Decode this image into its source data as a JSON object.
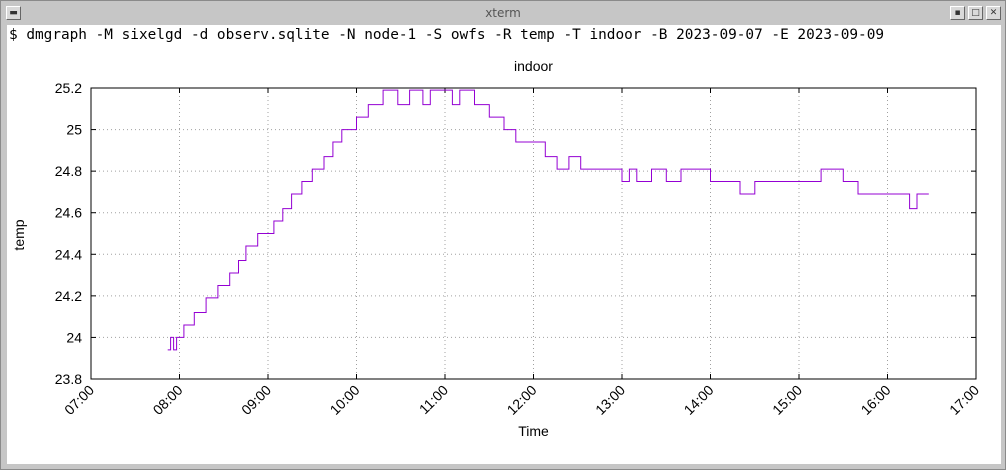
{
  "window": {
    "title": "xterm"
  },
  "terminal": {
    "command": "$ dmgraph -M sixelgd -d observ.sqlite -N node-1 -S owfs -R temp -T indoor -B 2023-09-07 -E 2023-09-09"
  },
  "colors": {
    "series": "#9400d3",
    "grid": "#a0a0a0",
    "axis": "#000000"
  },
  "chart_data": {
    "type": "line",
    "title": "indoor",
    "xlabel": "Time",
    "ylabel": "temp",
    "xlim": [
      "07:00",
      "17:00"
    ],
    "ylim": [
      23.8,
      25.2
    ],
    "grid": true,
    "legend": "none",
    "x_ticks": [
      "07:00",
      "08:00",
      "09:00",
      "10:00",
      "11:00",
      "12:00",
      "13:00",
      "14:00",
      "15:00",
      "16:00",
      "17:00"
    ],
    "y_ticks": [
      "23.8",
      "24",
      "24.2",
      "24.4",
      "24.6",
      "24.8",
      "25",
      "25.2"
    ],
    "series": [
      {
        "x": [
          "07:52",
          "07:54",
          "07:56",
          "07:58",
          "08:03",
          "08:10",
          "08:18",
          "08:26",
          "08:34",
          "08:40",
          "08:45",
          "08:53",
          "09:00",
          "09:04",
          "09:10",
          "09:16",
          "09:23",
          "09:30",
          "09:38",
          "09:44",
          "09:50",
          "10:00",
          "10:08",
          "10:18",
          "10:28",
          "10:36",
          "10:45",
          "10:50",
          "10:55",
          "11:00",
          "11:05",
          "11:10",
          "11:20",
          "11:30",
          "11:40",
          "11:48",
          "12:00",
          "12:08",
          "12:16",
          "12:24",
          "12:32",
          "12:40",
          "12:48",
          "12:54",
          "13:00",
          "13:05",
          "13:10",
          "13:20",
          "13:30",
          "13:40",
          "13:50",
          "14:00",
          "14:10",
          "14:20",
          "14:30",
          "14:40",
          "14:50",
          "15:00",
          "15:15",
          "15:30",
          "15:40",
          "15:50",
          "16:00",
          "16:10",
          "16:15",
          "16:20",
          "16:28"
        ],
        "y": [
          23.94,
          24.0,
          23.94,
          24.0,
          24.06,
          24.12,
          24.19,
          24.25,
          24.31,
          24.37,
          24.44,
          24.5,
          24.5,
          24.56,
          24.62,
          24.69,
          24.75,
          24.81,
          24.87,
          24.94,
          25.0,
          25.06,
          25.12,
          25.19,
          25.12,
          25.19,
          25.12,
          25.19,
          25.19,
          25.19,
          25.12,
          25.19,
          25.12,
          25.06,
          25.0,
          24.94,
          24.94,
          24.87,
          24.81,
          24.87,
          24.81,
          24.81,
          24.81,
          24.81,
          24.75,
          24.81,
          24.75,
          24.81,
          24.75,
          24.81,
          24.81,
          24.75,
          24.75,
          24.69,
          24.75,
          24.75,
          24.75,
          24.75,
          24.81,
          24.75,
          24.69,
          24.69,
          24.69,
          24.69,
          24.62,
          24.69,
          24.69
        ]
      }
    ]
  }
}
